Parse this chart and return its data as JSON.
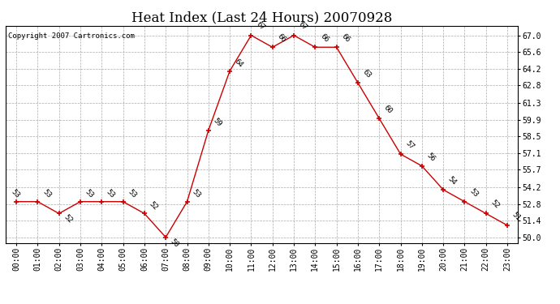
{
  "title": "Heat Index (Last 24 Hours) 20070928",
  "copyright": "Copyright 2007 Cartronics.com",
  "x_labels": [
    "00:00",
    "01:00",
    "02:00",
    "03:00",
    "04:00",
    "05:00",
    "06:00",
    "07:00",
    "08:00",
    "09:00",
    "10:00",
    "11:00",
    "12:00",
    "13:00",
    "14:00",
    "15:00",
    "16:00",
    "17:00",
    "18:00",
    "19:00",
    "20:00",
    "21:00",
    "22:00",
    "23:00"
  ],
  "y_values": [
    53,
    53,
    52,
    53,
    53,
    53,
    52,
    50,
    53,
    59,
    64,
    67,
    66,
    67,
    66,
    66,
    63,
    60,
    57,
    56,
    54,
    53,
    52,
    51
  ],
  "y_labels": [
    50.0,
    51.4,
    52.8,
    54.2,
    55.7,
    57.1,
    58.5,
    59.9,
    61.3,
    62.8,
    64.2,
    65.6,
    67.0
  ],
  "ylim": [
    49.5,
    67.8
  ],
  "line_color": "#cc0000",
  "marker_color": "#cc0000",
  "bg_color": "#ffffff",
  "grid_color": "#aaaaaa",
  "title_fontsize": 12,
  "label_fontsize": 7,
  "annot_fontsize": 6.5,
  "copyright_fontsize": 6.5
}
